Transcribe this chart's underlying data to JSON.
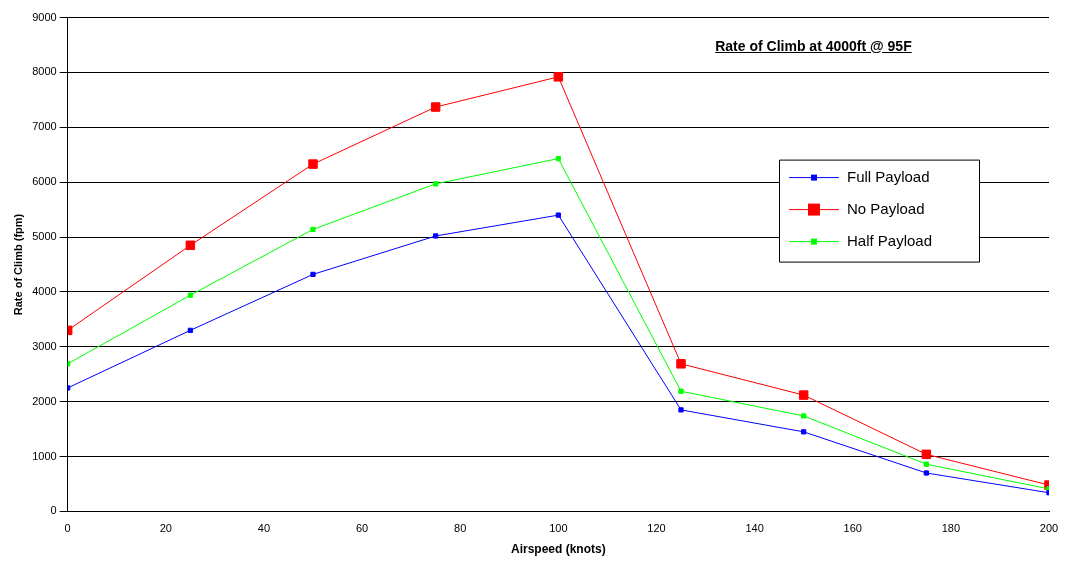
{
  "chart_data": {
    "type": "line",
    "title": "Rate of Climb at 4000ft @ 95F",
    "xlabel": "Airspeed (knots)",
    "ylabel": "Rate of Climb (fpm)",
    "x": [
      0,
      25,
      50,
      75,
      100,
      125,
      150,
      175,
      200
    ],
    "series": [
      {
        "name": "Full Payload",
        "color": "#0000ff",
        "values": [
          2250,
          3300,
          4320,
          5020,
          5400,
          1850,
          1450,
          700,
          340
        ]
      },
      {
        "name": "No Payload",
        "color": "#ff0000",
        "values": [
          3300,
          4850,
          6330,
          7370,
          7920,
          2690,
          2120,
          1040,
          480
        ]
      },
      {
        "name": "Half Payload",
        "color": "#00ff00",
        "values": [
          2690,
          3940,
          5140,
          5970,
          6430,
          2190,
          1740,
          860,
          410
        ]
      }
    ],
    "xlim": [
      0,
      200
    ],
    "xticks": [
      0,
      20,
      40,
      60,
      80,
      100,
      120,
      140,
      160,
      180,
      200
    ],
    "ylim": [
      0,
      9000
    ],
    "yticks": [
      0,
      1000,
      2000,
      3000,
      4000,
      5000,
      6000,
      7000,
      8000,
      9000
    ],
    "grid": "y",
    "legend": "right",
    "marker": "square",
    "line_style": "solid"
  }
}
